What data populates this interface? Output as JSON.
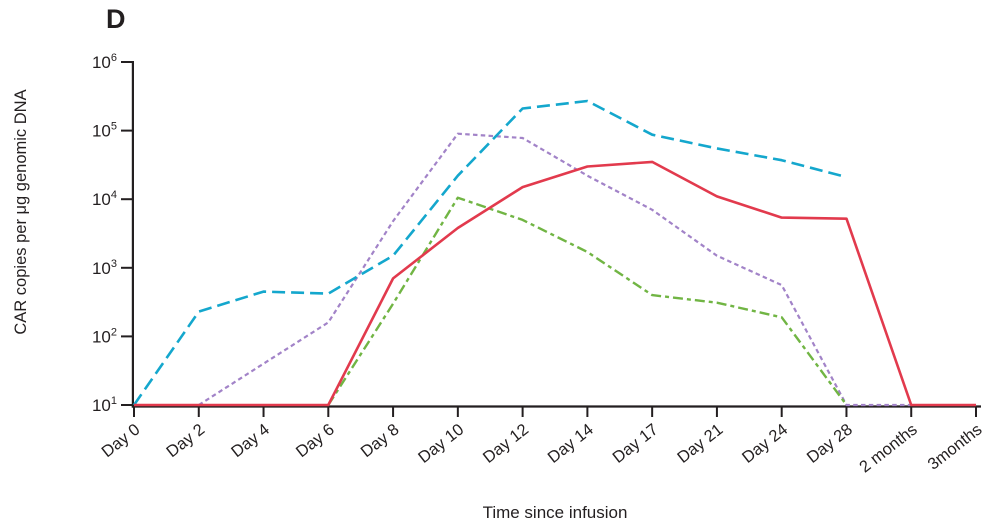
{
  "chart_data": {
    "type": "line",
    "panel_label": "D",
    "ylabel": "CAR copies per μg genomic DNA",
    "xlabel": "Time since infusion",
    "y_scale": "log",
    "ylim": [
      10,
      1000000
    ],
    "y_tick_exponents": [
      1,
      2,
      3,
      4,
      5,
      6
    ],
    "grid": false,
    "legend": "none",
    "axis_color": "#231f20",
    "categories": [
      "Day 0",
      "Day 2",
      "Day 4",
      "Day 6",
      "Day 8",
      "Day 10",
      "Day 12",
      "Day 14",
      "Day 17",
      "Day 21",
      "Day 24",
      "Day 28",
      "2 months",
      "3months"
    ],
    "series": [
      {
        "id": "purple-short-dash",
        "color": "#a283c8",
        "line_style": "short-dash",
        "width": 2.2,
        "values": [
          null,
          10,
          40,
          160,
          4800,
          90000,
          78000,
          22000,
          7000,
          1500,
          560,
          10,
          10,
          null
        ]
      },
      {
        "id": "green-dash-dot",
        "color": "#71b544",
        "line_style": "dash-dot",
        "width": 2.4,
        "values": [
          null,
          null,
          null,
          10,
          300,
          10500,
          5000,
          1700,
          400,
          310,
          190,
          10,
          null,
          null
        ]
      },
      {
        "id": "teal-long-dash",
        "color": "#14a7cd",
        "line_style": "long-dash",
        "width": 2.6,
        "values": [
          10,
          230,
          450,
          420,
          1500,
          22000,
          210000,
          270000,
          87000,
          55000,
          37000,
          21000,
          null,
          null
        ]
      },
      {
        "id": "red-solid",
        "color": "#e23a4d",
        "line_style": "solid",
        "width": 2.6,
        "values": [
          10,
          10,
          10,
          10,
          700,
          3800,
          15000,
          30000,
          35000,
          11000,
          5400,
          5200,
          10,
          10
        ]
      }
    ]
  }
}
